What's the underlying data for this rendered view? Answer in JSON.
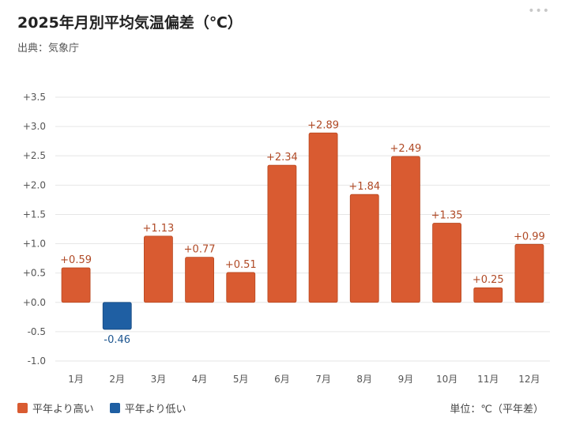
{
  "header": {
    "title": "2025年月別平均気温偏差（℃）",
    "source": "出典：気象庁",
    "menu_icon": "more-dots-icon"
  },
  "legend": {
    "positive_label": "平年より高い",
    "negative_label": "平年より低い"
  },
  "unit_label": "単位：℃（平年差）",
  "colors": {
    "positive": "#d95b31",
    "negative": "#1f5fa3",
    "grid": "#e6e6e6",
    "axis_text": "#555555"
  },
  "chart_data": {
    "type": "bar",
    "title": "2025年月別平均気温偏差（℃）",
    "categories": [
      "1月",
      "2月",
      "3月",
      "4月",
      "5月",
      "6月",
      "7月",
      "8月",
      "9月",
      "10月",
      "11月",
      "12月"
    ],
    "values": [
      0.59,
      -0.46,
      1.13,
      0.77,
      0.51,
      2.34,
      2.89,
      1.84,
      2.49,
      1.35,
      0.25,
      0.99
    ],
    "data_labels": [
      "+0.59",
      "-0.46",
      "+1.13",
      "+0.77",
      "+0.51",
      "+2.34",
      "+2.89",
      "+1.84",
      "+2.49",
      "+1.35",
      "+0.25",
      "+0.99"
    ],
    "yticks": [
      3.5,
      3.0,
      2.5,
      2.0,
      1.5,
      1.0,
      0.5,
      0.0,
      -0.5,
      -1.0
    ],
    "ytick_labels": [
      "+3.5",
      "+3.0",
      "+2.5",
      "+2.0",
      "+1.5",
      "+1.0",
      "+0.5",
      "+0.0",
      "-0.5",
      "-1.0"
    ],
    "ylim": [
      -1.0,
      3.5
    ],
    "grid": true,
    "legend_position": "bottom-left"
  }
}
